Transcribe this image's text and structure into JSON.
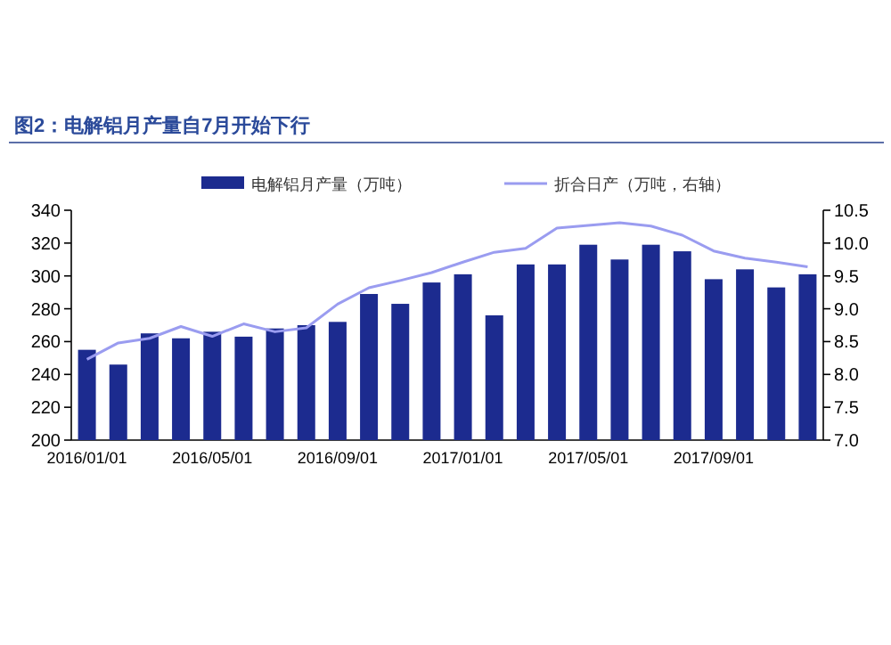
{
  "chart_data": {
    "type": "bar",
    "title": "图2：电解铝月产量自7月开始下行",
    "categories": [
      "2016/01/01",
      null,
      null,
      null,
      "2016/05/01",
      null,
      null,
      null,
      "2016/09/01",
      null,
      null,
      null,
      "2017/01/01",
      null,
      null,
      null,
      "2017/05/01",
      null,
      null,
      null,
      "2017/09/01",
      null,
      null,
      null
    ],
    "series": [
      {
        "name": "电解铝月产量（万吨）",
        "color": "#1c2b8f",
        "values": [
          255,
          246,
          265,
          262,
          266,
          263,
          268,
          270,
          272,
          289,
          283,
          296,
          301,
          276,
          307,
          307,
          319,
          310,
          319,
          315,
          298,
          304,
          293,
          301
        ]
      },
      {
        "name": "折合日产（万吨，右轴）",
        "type": "line",
        "axis": "y2",
        "color": "#9a9cf0",
        "values": [
          8.23,
          8.48,
          8.55,
          8.73,
          8.58,
          8.77,
          8.65,
          8.71,
          9.07,
          9.32,
          9.43,
          9.55,
          9.71,
          9.86,
          9.92,
          10.23,
          10.27,
          10.31,
          10.26,
          10.12,
          9.88,
          9.77,
          9.71,
          9.64
        ]
      }
    ],
    "ylim": [
      200,
      340
    ],
    "yticks": [
      200,
      220,
      240,
      260,
      280,
      300,
      320,
      340
    ],
    "y2lim": [
      7,
      10.5
    ],
    "y2ticks": [
      {
        "value": 7,
        "label": "7.0"
      },
      {
        "value": 7.5,
        "label": "7.5"
      },
      {
        "value": 8,
        "label": "8.0"
      },
      {
        "value": 8.5,
        "label": "8.5"
      },
      {
        "value": 9,
        "label": "9.0"
      },
      {
        "value": 9.5,
        "label": "9.5"
      },
      {
        "value": 10,
        "label": "10.0"
      },
      {
        "value": 10.5,
        "label": "10.5"
      }
    ],
    "legend": "top"
  }
}
